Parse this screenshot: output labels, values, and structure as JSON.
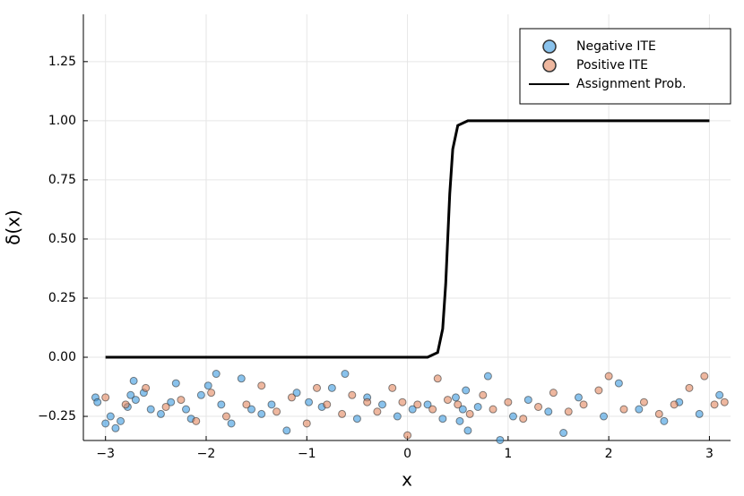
{
  "chart_data": {
    "type": "scatter",
    "xlabel": "x",
    "ylabel": "δ(x)",
    "xlim": [
      -3.22,
      3.21
    ],
    "ylim": [
      -0.352,
      1.45
    ],
    "xticks": [
      {
        "value": -3,
        "label": "−3"
      },
      {
        "value": -2,
        "label": "−2"
      },
      {
        "value": -1,
        "label": "−1"
      },
      0,
      1,
      2,
      3
    ],
    "yticks": [
      {
        "value": -0.25,
        "label": "−0.25"
      },
      {
        "value": 0,
        "label": "0.00"
      },
      {
        "value": 0.25,
        "label": "0.25"
      },
      {
        "value": 0.5,
        "label": "0.50"
      },
      {
        "value": 0.75,
        "label": "0.75"
      },
      {
        "value": 1,
        "label": "1.00"
      },
      {
        "value": 1.25,
        "label": "1.25"
      }
    ],
    "grid": true,
    "legend": "top-right",
    "series": [
      {
        "name": "Negative ITE",
        "type": "scatter",
        "color": "#3a9ae0",
        "x": [
          -3.1,
          -3.08,
          -3.0,
          -2.95,
          -2.9,
          -2.85,
          -2.78,
          -2.75,
          -2.72,
          -2.7,
          -2.62,
          -2.55,
          -2.45,
          -2.35,
          -2.3,
          -2.2,
          -2.15,
          -2.05,
          -1.98,
          -1.9,
          -1.85,
          -1.75,
          -1.65,
          -1.55,
          -1.45,
          -1.35,
          -1.2,
          -1.1,
          -0.98,
          -0.85,
          -0.75,
          -0.62,
          -0.5,
          -0.4,
          -0.25,
          -0.1,
          0.05,
          0.2,
          0.35,
          0.48,
          0.52,
          0.55,
          0.58,
          0.6,
          0.7,
          0.8,
          0.92,
          1.05,
          1.2,
          1.4,
          1.55,
          1.7,
          1.95,
          2.1,
          2.3,
          2.55,
          2.7,
          2.9,
          3.1
        ],
        "values": [
          -0.17,
          -0.19,
          -0.28,
          -0.25,
          -0.3,
          -0.27,
          -0.21,
          -0.16,
          -0.1,
          -0.18,
          -0.15,
          -0.22,
          -0.24,
          -0.19,
          -0.11,
          -0.22,
          -0.26,
          -0.16,
          -0.12,
          -0.07,
          -0.2,
          -0.28,
          -0.09,
          -0.22,
          -0.24,
          -0.2,
          -0.31,
          -0.15,
          -0.19,
          -0.21,
          -0.13,
          -0.07,
          -0.26,
          -0.17,
          -0.2,
          -0.25,
          -0.22,
          -0.2,
          -0.26,
          -0.17,
          -0.27,
          -0.22,
          -0.14,
          -0.31,
          -0.21,
          -0.08,
          -0.35,
          -0.25,
          -0.18,
          -0.23,
          -0.32,
          -0.17,
          -0.25,
          -0.11,
          -0.22,
          -0.27,
          -0.19,
          -0.24,
          -0.16
        ]
      },
      {
        "name": "Positive ITE",
        "type": "scatter",
        "color": "#e2875f",
        "x": [
          -3.0,
          -2.8,
          -2.6,
          -2.4,
          -2.25,
          -2.1,
          -1.95,
          -1.8,
          -1.6,
          -1.45,
          -1.3,
          -1.15,
          -1.0,
          -0.9,
          -0.8,
          -0.65,
          -0.55,
          -0.4,
          -0.3,
          -0.15,
          -0.05,
          0.0,
          0.1,
          0.25,
          0.3,
          0.4,
          0.5,
          0.62,
          0.75,
          0.85,
          1.0,
          1.15,
          1.3,
          1.45,
          1.6,
          1.75,
          1.9,
          2.0,
          2.15,
          2.35,
          2.5,
          2.65,
          2.8,
          2.95,
          3.05,
          3.15
        ],
        "values": [
          -0.17,
          -0.2,
          -0.13,
          -0.21,
          -0.18,
          -0.27,
          -0.15,
          -0.25,
          -0.2,
          -0.12,
          -0.23,
          -0.17,
          -0.28,
          -0.13,
          -0.2,
          -0.24,
          -0.16,
          -0.19,
          -0.23,
          -0.13,
          -0.19,
          -0.33,
          -0.2,
          -0.22,
          -0.09,
          -0.18,
          -0.2,
          -0.24,
          -0.16,
          -0.22,
          -0.19,
          -0.26,
          -0.21,
          -0.15,
          -0.23,
          -0.2,
          -0.14,
          -0.08,
          -0.22,
          -0.19,
          -0.24,
          -0.2,
          -0.13,
          -0.08,
          -0.2,
          -0.19
        ]
      },
      {
        "name": "Assignment Prob.",
        "type": "line",
        "color": "#000000",
        "x": [
          -3,
          0.2,
          0.3,
          0.35,
          0.38,
          0.4,
          0.42,
          0.45,
          0.5,
          0.6,
          3
        ],
        "values": [
          0,
          0,
          0.02,
          0.12,
          0.31,
          0.5,
          0.69,
          0.88,
          0.98,
          1,
          1
        ]
      }
    ]
  }
}
